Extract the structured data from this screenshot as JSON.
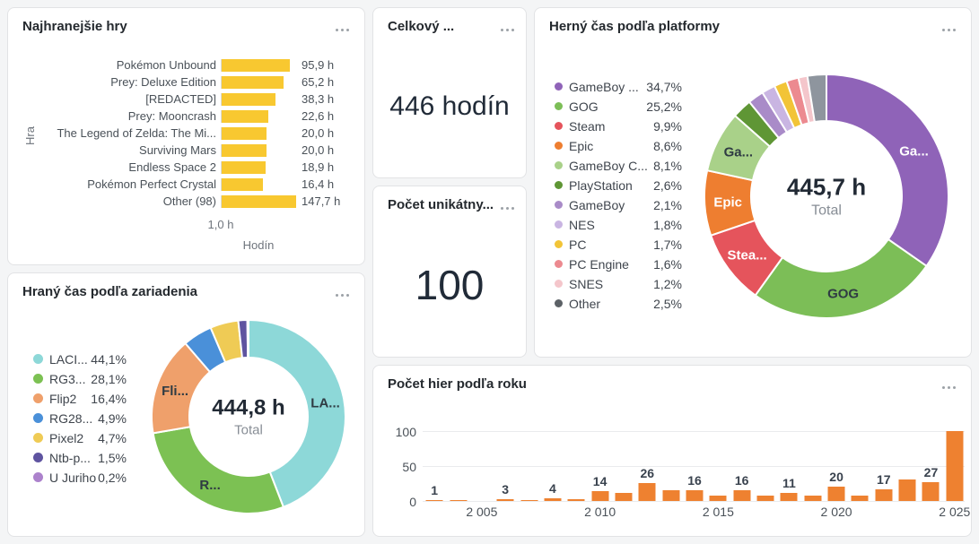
{
  "icons": {
    "panel_menu": "ellipsis-icon"
  },
  "colors": {
    "dashboard_bg": "#F4F5F6",
    "panel_bg": "#FFFFFF",
    "title_text": "#24292E",
    "body_text": "#4A5158",
    "muted_text": "#6E747C",
    "stat_text": "#212B38",
    "grid_line": "#EAEBED",
    "accent_yellow": "#F8C830",
    "accent_orange": "#EE8130"
  },
  "chart_data": [
    {
      "id": "top_games",
      "type": "bar",
      "orientation": "horizontal",
      "x_scale": "log",
      "title": "Najhranejšie hry",
      "xlabel": "Hodín",
      "ylabel": "Hra",
      "x_ticks": [
        "1,0 h"
      ],
      "categories": [
        "Pokémon Unbound",
        "Prey: Deluxe Edition",
        "[REDACTED]",
        "Prey: Mooncrash",
        "The Legend of Zelda: The Mi...",
        "Surviving Mars",
        "Endless Space 2",
        "Pokémon Perfect Crystal",
        "Other (98)"
      ],
      "values": [
        95.9,
        65.2,
        38.3,
        22.6,
        20.0,
        20.0,
        18.9,
        16.4,
        147.7
      ],
      "value_labels": [
        "95,9 h",
        "65,2 h",
        "38,3 h",
        "22,6 h",
        "20,0 h",
        "20,0 h",
        "18,9 h",
        "16,4 h",
        "147,7 h"
      ],
      "bar_color": "#F8C830"
    },
    {
      "id": "total_time_stat",
      "type": "stat",
      "title": "Celkový ...",
      "value": "446 hodín"
    },
    {
      "id": "unique_games_stat",
      "type": "stat",
      "title": "Počet unikátny...",
      "value": "100"
    },
    {
      "id": "platform_time",
      "type": "pie",
      "donut": true,
      "title": "Herný čas podľa platformy",
      "center_value": "445,7 h",
      "center_label": "Total",
      "legend_position": "left",
      "slices": [
        {
          "name": "GameBoy ...",
          "pct_label": "34,7%",
          "value": 34.7,
          "color": "#8F63B8",
          "slice_label": "Ga...",
          "label_dark": false
        },
        {
          "name": "GOG",
          "pct_label": "25,2%",
          "value": 25.2,
          "color": "#7CBE57",
          "slice_label": "GOG",
          "label_dark": true
        },
        {
          "name": "Steam",
          "pct_label": "9,9%",
          "value": 9.9,
          "color": "#E5545C",
          "slice_label": "Stea...",
          "label_dark": false
        },
        {
          "name": "Epic",
          "pct_label": "8,6%",
          "value": 8.6,
          "color": "#EE7E30",
          "slice_label": "Epic",
          "label_dark": false
        },
        {
          "name": "GameBoy C...",
          "pct_label": "8,1%",
          "value": 8.1,
          "color": "#A9D189",
          "slice_label": "Ga...",
          "label_dark": true
        },
        {
          "name": "PlayStation",
          "pct_label": "2,6%",
          "value": 2.6,
          "color": "#5F9635"
        },
        {
          "name": "GameBoy",
          "pct_label": "2,1%",
          "value": 2.1,
          "color": "#A98BC8"
        },
        {
          "name": "NES",
          "pct_label": "1,8%",
          "value": 1.8,
          "color": "#C9B5E2"
        },
        {
          "name": "PC",
          "pct_label": "1,7%",
          "value": 1.7,
          "color": "#F2C437"
        },
        {
          "name": "PC Engine",
          "pct_label": "1,6%",
          "value": 1.6,
          "color": "#EC8A90"
        },
        {
          "name": "SNES",
          "pct_label": "1,2%",
          "value": 1.2,
          "color": "#F4C6CB"
        },
        {
          "name": "Other",
          "pct_label": "2,5%",
          "value": 2.5,
          "color": "#8E959E",
          "dot_color": "#5C6166"
        }
      ]
    },
    {
      "id": "device_time",
      "type": "pie",
      "donut": true,
      "title": "Hraný čas podľa zariadenia",
      "center_value": "444,8 h",
      "center_label": "Total",
      "legend_position": "left",
      "slices": [
        {
          "name": "LACI...",
          "pct_label": "44,1%",
          "value": 44.1,
          "color": "#8DD8D8",
          "slice_label": "LA...",
          "label_dark": true
        },
        {
          "name": "RG3...",
          "pct_label": "28,1%",
          "value": 28.1,
          "color": "#7CC153",
          "slice_label": "R...",
          "label_dark": true
        },
        {
          "name": "Flip2",
          "pct_label": "16,4%",
          "value": 16.4,
          "color": "#EFA06B",
          "slice_label": "Fli...",
          "label_dark": true
        },
        {
          "name": "RG28...",
          "pct_label": "4,9%",
          "value": 4.9,
          "color": "#4A90D9"
        },
        {
          "name": "Pixel2",
          "pct_label": "4,7%",
          "value": 4.7,
          "color": "#EFCB55"
        },
        {
          "name": "Ntb-p...",
          "pct_label": "1,5%",
          "value": 1.5,
          "color": "#5F54A0"
        },
        {
          "name": "U Juriho",
          "pct_label": "0,2%",
          "value": 0.2,
          "color": "#AC82CC"
        }
      ]
    },
    {
      "id": "games_per_year",
      "type": "bar",
      "title": "Počet hier podľa roku",
      "ylim": [
        0,
        100
      ],
      "yticks": [
        "100",
        "50",
        "0"
      ],
      "x": [
        2003,
        2004,
        2005,
        2006,
        2007,
        2008,
        2009,
        2010,
        2011,
        2012,
        2013,
        2014,
        2015,
        2016,
        2017,
        2018,
        2019,
        2020,
        2021,
        2022,
        2023,
        2024,
        2025
      ],
      "values": [
        1,
        1,
        0,
        3,
        1,
        4,
        2,
        14,
        11,
        26,
        15,
        16,
        8,
        16,
        8,
        11,
        8,
        20,
        8,
        17,
        31,
        27,
        100
      ],
      "bar_labels": [
        "1",
        "",
        "",
        "3",
        "",
        "4",
        "",
        "14",
        "",
        "26",
        "",
        "16",
        "",
        "16",
        "",
        "11",
        "",
        "20",
        "",
        "17",
        "",
        "27",
        ""
      ],
      "x_tick_marks": [
        {
          "year": 2005,
          "label": "2 005"
        },
        {
          "year": 2010,
          "label": "2 010"
        },
        {
          "year": 2015,
          "label": "2 015"
        },
        {
          "year": 2020,
          "label": "2 020"
        },
        {
          "year": 2025,
          "label": "2 025"
        }
      ],
      "bar_color": "#EE8130"
    }
  ]
}
